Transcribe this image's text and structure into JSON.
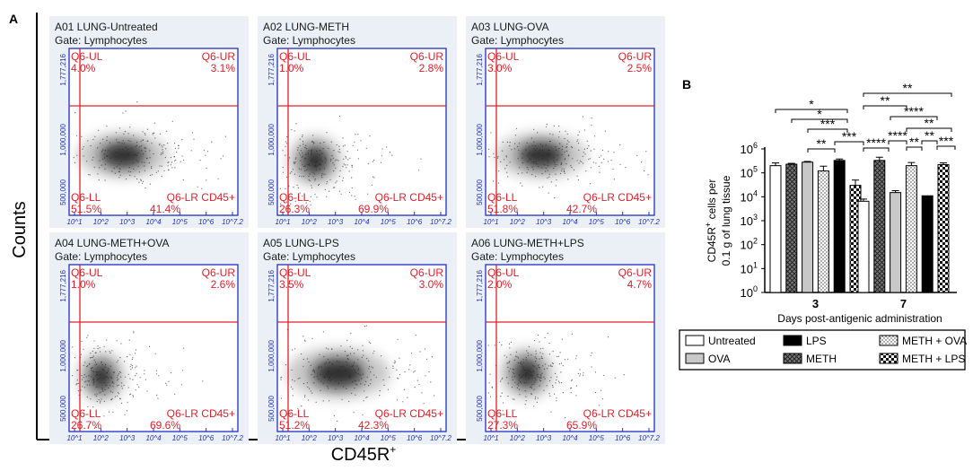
{
  "figure": {
    "panel_a_label": "A",
    "panel_b_label": "B",
    "y_axis_title": "Counts",
    "x_axis_title_main": "CD45R",
    "x_axis_title_sup": "+"
  },
  "chart_data": [
    {
      "type": "scatter",
      "panel": "A",
      "plot_style": "flow cytometry density dot plot",
      "gate": "Gate: Lymphocytes",
      "y_axis_ticks": [
        "1,777,216",
        "1,000,000",
        "500,000"
      ],
      "x_axis_ticks": [
        "10^1",
        "10^2",
        "10^3",
        "10^4",
        "10^5",
        "10^6",
        "10^7.2"
      ],
      "quadrants": {
        "ul": "Q6-UL",
        "ur": "Q6-UR",
        "ll": "Q6-LL",
        "lr": "Q6-LR CD45+"
      },
      "plots": [
        {
          "title": "A01 LUNG-Untreated",
          "ul": "4.0%",
          "ur": "3.1%",
          "ll": "51.5%",
          "lr": "41.4%"
        },
        {
          "title": "A02 LUNG-METH",
          "ul": "1.0%",
          "ur": "2.8%",
          "ll": "26.3%",
          "lr": "69.9%"
        },
        {
          "title": "A03 LUNG-OVA",
          "ul": "3.0%",
          "ur": "2.5%",
          "ll": "51.8%",
          "lr": "42.7%"
        },
        {
          "title": "A04 LUNG-METH+OVA",
          "ul": "1.0%",
          "ur": "2.6%",
          "ll": "26.7%",
          "lr": "69.6%"
        },
        {
          "title": "A05 LUNG-LPS",
          "ul": "3.5%",
          "ur": "3.0%",
          "ll": "51.2%",
          "lr": "42.3%"
        },
        {
          "title": "A06 LUNG-METH+LPS",
          "ul": "2.0%",
          "ur": "4.7%",
          "ll": "27.3%",
          "lr": "65.9%"
        }
      ]
    },
    {
      "type": "bar",
      "panel": "B",
      "y_scale": "log",
      "ylim_exp": [
        0,
        6
      ],
      "y_tick_exponents": [
        0,
        1,
        2,
        3,
        4,
        5,
        6
      ],
      "y_tick_base": "10",
      "ylabel_line1_main": "CD45R",
      "ylabel_line1_sup": "+",
      "ylabel_line1_rest": " cells per",
      "ylabel_line2": "0.1 g of lung tissue",
      "xlabel": "Days post-antigenic administration",
      "categories": [
        "3",
        "7"
      ],
      "series": [
        {
          "name": "Untreated",
          "pattern": "white",
          "values": [
            200000,
            6500
          ],
          "errors": [
            60000,
            1500
          ]
        },
        {
          "name": "METH",
          "pattern": "crosshatch",
          "values": [
            230000,
            330000
          ],
          "errors": [
            20000,
            120000
          ]
        },
        {
          "name": "OVA",
          "pattern": "lightgray",
          "values": [
            280000,
            15000
          ],
          "errors": [
            20000,
            3000
          ]
        },
        {
          "name": "METH + OVA",
          "pattern": "dotted",
          "values": [
            120000,
            200000
          ],
          "errors": [
            70000,
            70000
          ]
        },
        {
          "name": "LPS",
          "pattern": "black",
          "values": [
            330000,
            11000
          ],
          "errors": [
            50000,
            0
          ]
        },
        {
          "name": "METH + LPS",
          "pattern": "checker",
          "values": [
            30000,
            220000
          ],
          "errors": [
            20000,
            40000
          ]
        }
      ],
      "significance": [
        {
          "day": "3",
          "label": "*"
        },
        {
          "day": "3",
          "label": "*"
        },
        {
          "day": "3",
          "label": "***"
        },
        {
          "day": "3",
          "label": "**"
        },
        {
          "day": "3",
          "label": "***"
        },
        {
          "day": "7",
          "label": "**"
        },
        {
          "day": "7",
          "label": "**"
        },
        {
          "day": "7",
          "label": "****"
        },
        {
          "day": "7",
          "label": "**"
        },
        {
          "day": "7",
          "label": "****"
        },
        {
          "day": "7",
          "label": "****"
        },
        {
          "day": "7",
          "label": "**"
        },
        {
          "day": "7",
          "label": "**"
        },
        {
          "day": "7",
          "label": "***"
        }
      ]
    }
  ]
}
